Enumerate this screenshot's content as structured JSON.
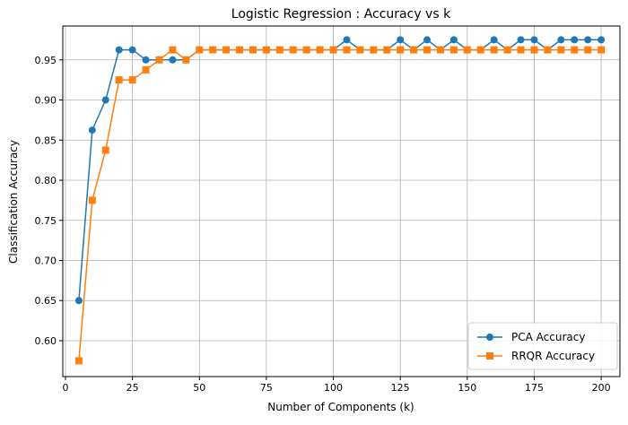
{
  "chart_data": {
    "type": "line",
    "title": "Logistic Regression : Accuracy vs k",
    "xlabel": "Number of Components (k)",
    "ylabel": "Classification Accuracy",
    "xlim": [
      -1,
      207
    ],
    "ylim": [
      0.5553,
      0.9922
    ],
    "xticks": [
      0,
      25,
      50,
      75,
      100,
      125,
      150,
      175,
      200
    ],
    "xtick_labels": [
      "0",
      "25",
      "50",
      "75",
      "100",
      "125",
      "150",
      "175",
      "200"
    ],
    "yticks": [
      0.6,
      0.65,
      0.7,
      0.75,
      0.8,
      0.85,
      0.9,
      0.95
    ],
    "ytick_labels": [
      "0.60",
      "0.65",
      "0.70",
      "0.75",
      "0.80",
      "0.85",
      "0.90",
      "0.95"
    ],
    "grid": true,
    "legend_position": "lower-right",
    "x": [
      5,
      10,
      15,
      20,
      25,
      30,
      35,
      40,
      45,
      50,
      55,
      60,
      65,
      70,
      75,
      80,
      85,
      90,
      95,
      100,
      105,
      110,
      115,
      120,
      125,
      130,
      135,
      140,
      145,
      150,
      155,
      160,
      165,
      170,
      175,
      180,
      185,
      190,
      195,
      200
    ],
    "series": [
      {
        "name": "PCA Accuracy",
        "color": "#1f77b4",
        "marker": "circle",
        "values": [
          0.65,
          0.8625,
          0.9,
          0.9625,
          0.9625,
          0.95,
          0.95,
          0.95,
          0.95,
          0.9625,
          0.9625,
          0.9625,
          0.9625,
          0.9625,
          0.9625,
          0.9625,
          0.9625,
          0.9625,
          0.9625,
          0.9625,
          0.975,
          0.9625,
          0.9625,
          0.9625,
          0.975,
          0.9625,
          0.975,
          0.9625,
          0.975,
          0.9625,
          0.9625,
          0.975,
          0.9625,
          0.975,
          0.975,
          0.9625,
          0.975,
          0.975,
          0.975,
          0.975
        ]
      },
      {
        "name": "RRQR Accuracy",
        "color": "#ff7f0e",
        "marker": "square",
        "values": [
          0.575,
          0.775,
          0.8375,
          0.925,
          0.925,
          0.9375,
          0.95,
          0.9625,
          0.95,
          0.9625,
          0.9625,
          0.9625,
          0.9625,
          0.9625,
          0.9625,
          0.9625,
          0.9625,
          0.9625,
          0.9625,
          0.9625,
          0.9625,
          0.9625,
          0.9625,
          0.9625,
          0.9625,
          0.9625,
          0.9625,
          0.9625,
          0.9625,
          0.9625,
          0.9625,
          0.9625,
          0.9625,
          0.9625,
          0.9625,
          0.9625,
          0.9625,
          0.9625,
          0.9625,
          0.9625
        ]
      }
    ]
  }
}
